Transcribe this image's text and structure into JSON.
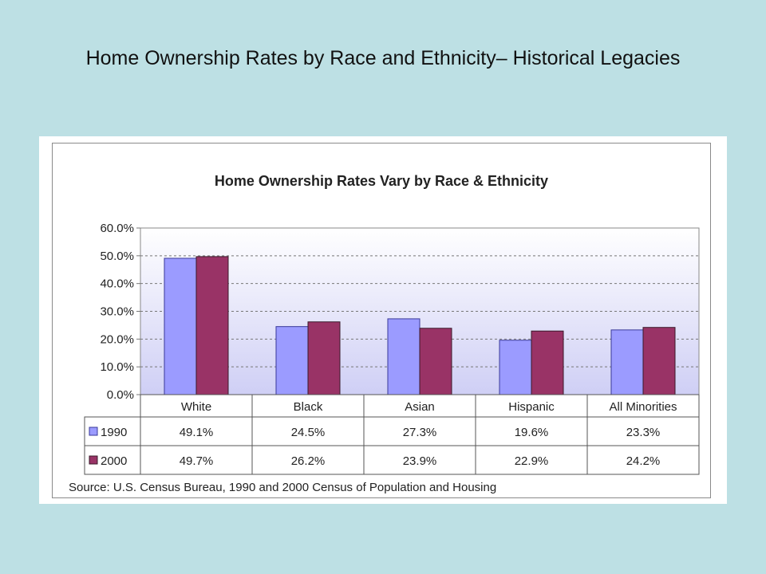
{
  "slide": {
    "title": "Home Ownership Rates by Race and Ethnicity– Historical Legacies"
  },
  "colors": {
    "background": "#bde0e4",
    "series_1990": "#9b9bff",
    "series_2000": "#993366",
    "plot_gradient_top": "#ffffff",
    "plot_gradient_bottom": "#cfcff5"
  },
  "chart_data": {
    "type": "bar",
    "title": "Home Ownership Rates Vary by Race & Ethnicity",
    "categories": [
      "White",
      "Black",
      "Asian",
      "Hispanic",
      "All Minorities"
    ],
    "series": [
      {
        "name": "1990",
        "values": [
          49.1,
          24.5,
          27.3,
          19.6,
          23.3
        ],
        "labels": [
          "49.1%",
          "24.5%",
          "27.3%",
          "19.6%",
          "23.3%"
        ]
      },
      {
        "name": "2000",
        "values": [
          49.7,
          26.2,
          23.9,
          22.9,
          24.2
        ],
        "labels": [
          "49.7%",
          "26.2%",
          "23.9%",
          "22.9%",
          "24.2%"
        ]
      }
    ],
    "y_ticks": [
      "60.0%",
      "50.0%",
      "40.0%",
      "30.0%",
      "20.0%",
      "10.0%",
      "0.0%"
    ],
    "ylim": [
      0,
      60
    ],
    "grid": "horizontal dashed",
    "legend": "data table",
    "source": "Source: U.S. Census Bureau, 1990 and 2000 Census of Population and Housing"
  }
}
